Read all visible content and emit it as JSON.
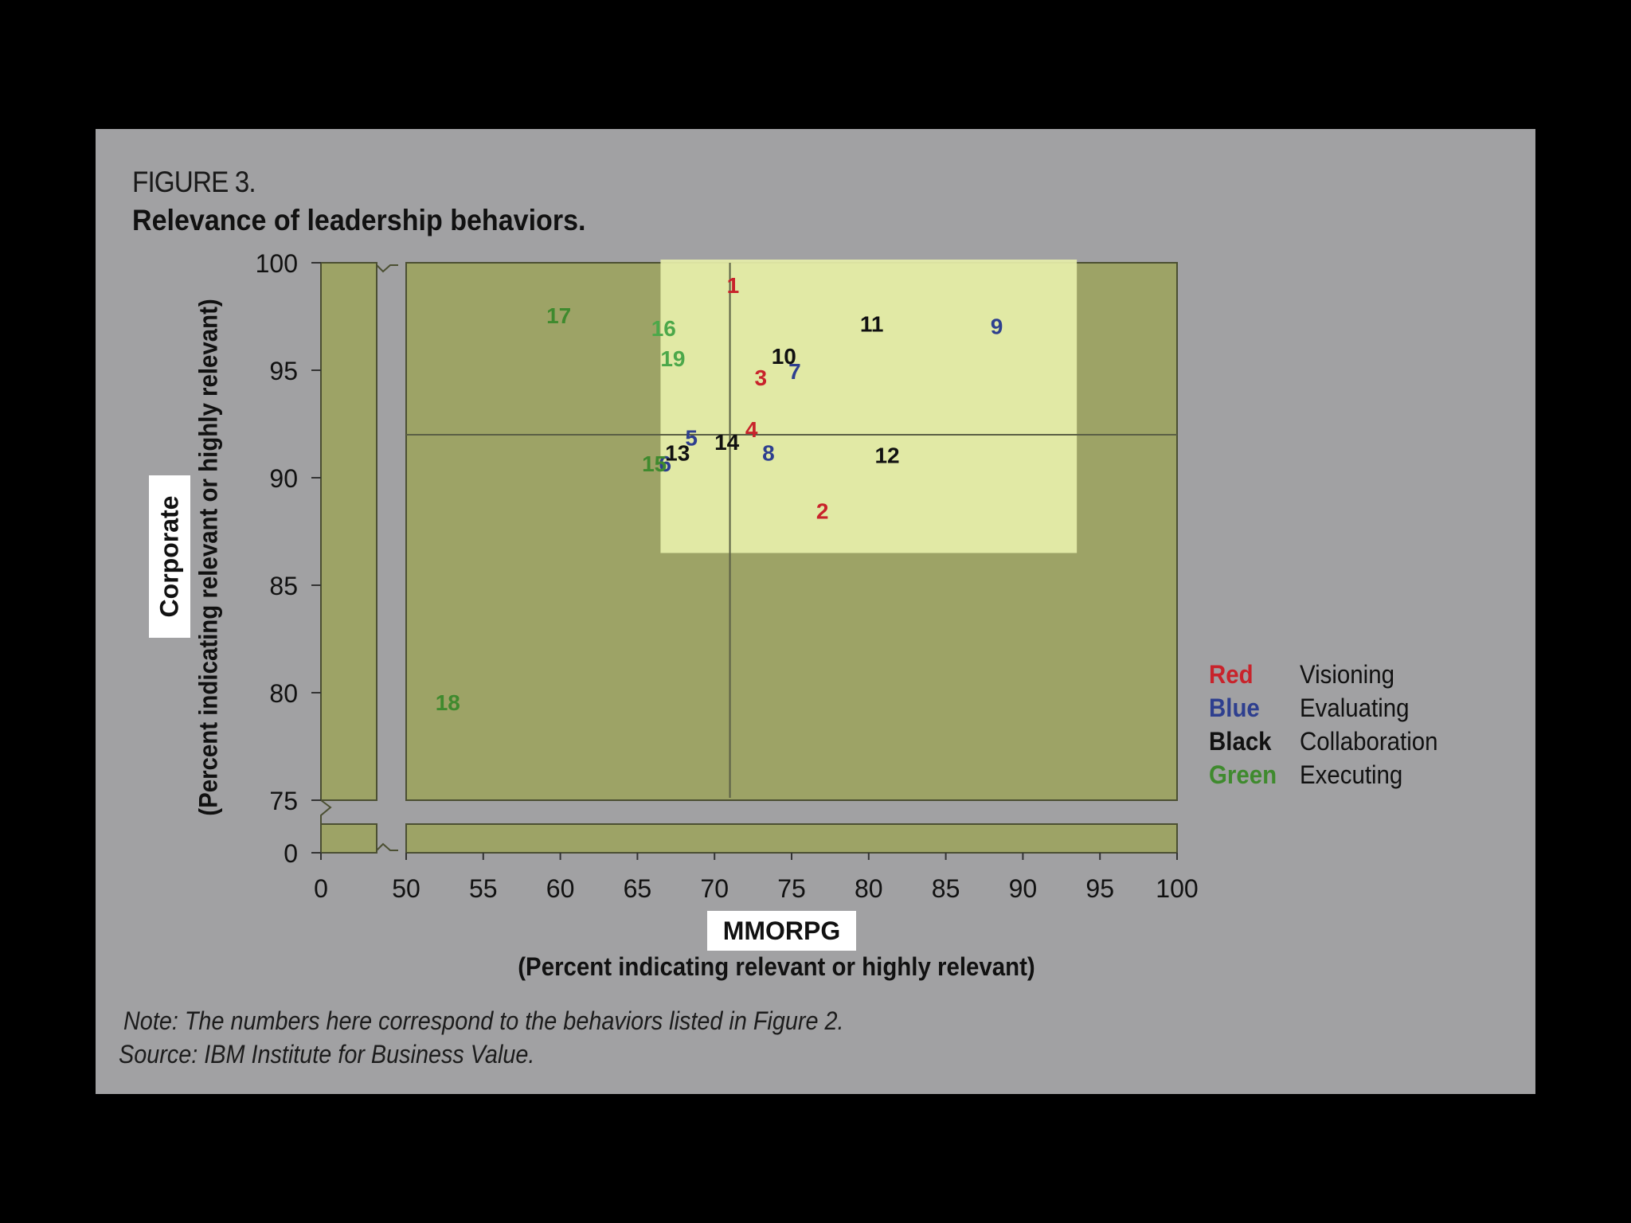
{
  "figure_label": "FIGURE 3.",
  "figure_title": "Relevance of leadership behaviors.",
  "note": "Note: The numbers here correspond to the behaviors listed in Figure 2.",
  "source": "Source: IBM Institute for Business Value.",
  "colors": {
    "panel": "#a1a1a3",
    "plot_fill": "#9da366",
    "highlight": "#e6eeaa",
    "red": "#c8232b",
    "blue": "#2e3f8f",
    "black": "#111111",
    "green": "#3f8a2e",
    "light_green": "#4ca84a"
  },
  "legend": [
    {
      "color_name": "Red",
      "meaning": "Visioning",
      "color": "#c8232b"
    },
    {
      "color_name": "Blue",
      "meaning": "Evaluating",
      "color": "#2e3f8f"
    },
    {
      "color_name": "Black",
      "meaning": "Collaboration",
      "color": "#111111"
    },
    {
      "color_name": "Green",
      "meaning": "Executing",
      "color": "#3f8a2e"
    }
  ],
  "chart_data": {
    "type": "scatter",
    "xlabel": "MMORPG",
    "xlabel_sub": "(Percent indicating relevant or highly relevant)",
    "ylabel": "Corporate",
    "ylabel_sub": "(Percent indicating relevant or highly relevant)",
    "x_ticks": [
      "0",
      "50",
      "55",
      "60",
      "65",
      "70",
      "75",
      "80",
      "85",
      "90",
      "95",
      "100"
    ],
    "y_ticks": [
      "100",
      "95",
      "90",
      "85",
      "80",
      "75",
      "0"
    ],
    "xlim": [
      50,
      100
    ],
    "ylim": [
      75,
      100
    ],
    "axis_breaks": [
      "x between 0 and 50",
      "y between 0 and 75"
    ],
    "quadrant_lines": {
      "x": 71,
      "y": 92
    },
    "highlight_region": {
      "x": [
        66.5,
        93.5
      ],
      "y": [
        86.5,
        100
      ]
    },
    "points": [
      {
        "label": "1",
        "x": 71.2,
        "y": 99,
        "color": "#c8232b"
      },
      {
        "label": "2",
        "x": 77,
        "y": 88.5,
        "color": "#c8232b"
      },
      {
        "label": "3",
        "x": 73,
        "y": 94.7,
        "color": "#c8232b"
      },
      {
        "label": "4",
        "x": 72.4,
        "y": 92.3,
        "color": "#c8232b"
      },
      {
        "label": "5",
        "x": 68.5,
        "y": 91.9,
        "color": "#2e3f8f"
      },
      {
        "label": "6",
        "x": 66.8,
        "y": 90.7,
        "color": "#2e3f8f"
      },
      {
        "label": "7",
        "x": 75.2,
        "y": 95,
        "color": "#2e3f8f"
      },
      {
        "label": "8",
        "x": 73.5,
        "y": 91.2,
        "color": "#2e3f8f"
      },
      {
        "label": "9",
        "x": 88.3,
        "y": 97.1,
        "color": "#2e3f8f"
      },
      {
        "label": "10",
        "x": 74.5,
        "y": 95.7,
        "color": "#111111"
      },
      {
        "label": "11",
        "x": 80.2,
        "y": 97.2,
        "color": "#111111"
      },
      {
        "label": "12",
        "x": 81.2,
        "y": 91.1,
        "color": "#111111"
      },
      {
        "label": "13",
        "x": 67.6,
        "y": 91.2,
        "color": "#111111"
      },
      {
        "label": "14",
        "x": 70.8,
        "y": 91.7,
        "color": "#111111"
      },
      {
        "label": "15",
        "x": 66.1,
        "y": 90.7,
        "color": "#3f8a2e"
      },
      {
        "label": "16",
        "x": 66.7,
        "y": 97,
        "color": "#4ca84a"
      },
      {
        "label": "17",
        "x": 59.9,
        "y": 97.6,
        "color": "#3f8a2e"
      },
      {
        "label": "18",
        "x": 52.7,
        "y": 79.6,
        "color": "#3f8a2e"
      },
      {
        "label": "19",
        "x": 67.3,
        "y": 95.6,
        "color": "#4ca84a"
      }
    ]
  }
}
